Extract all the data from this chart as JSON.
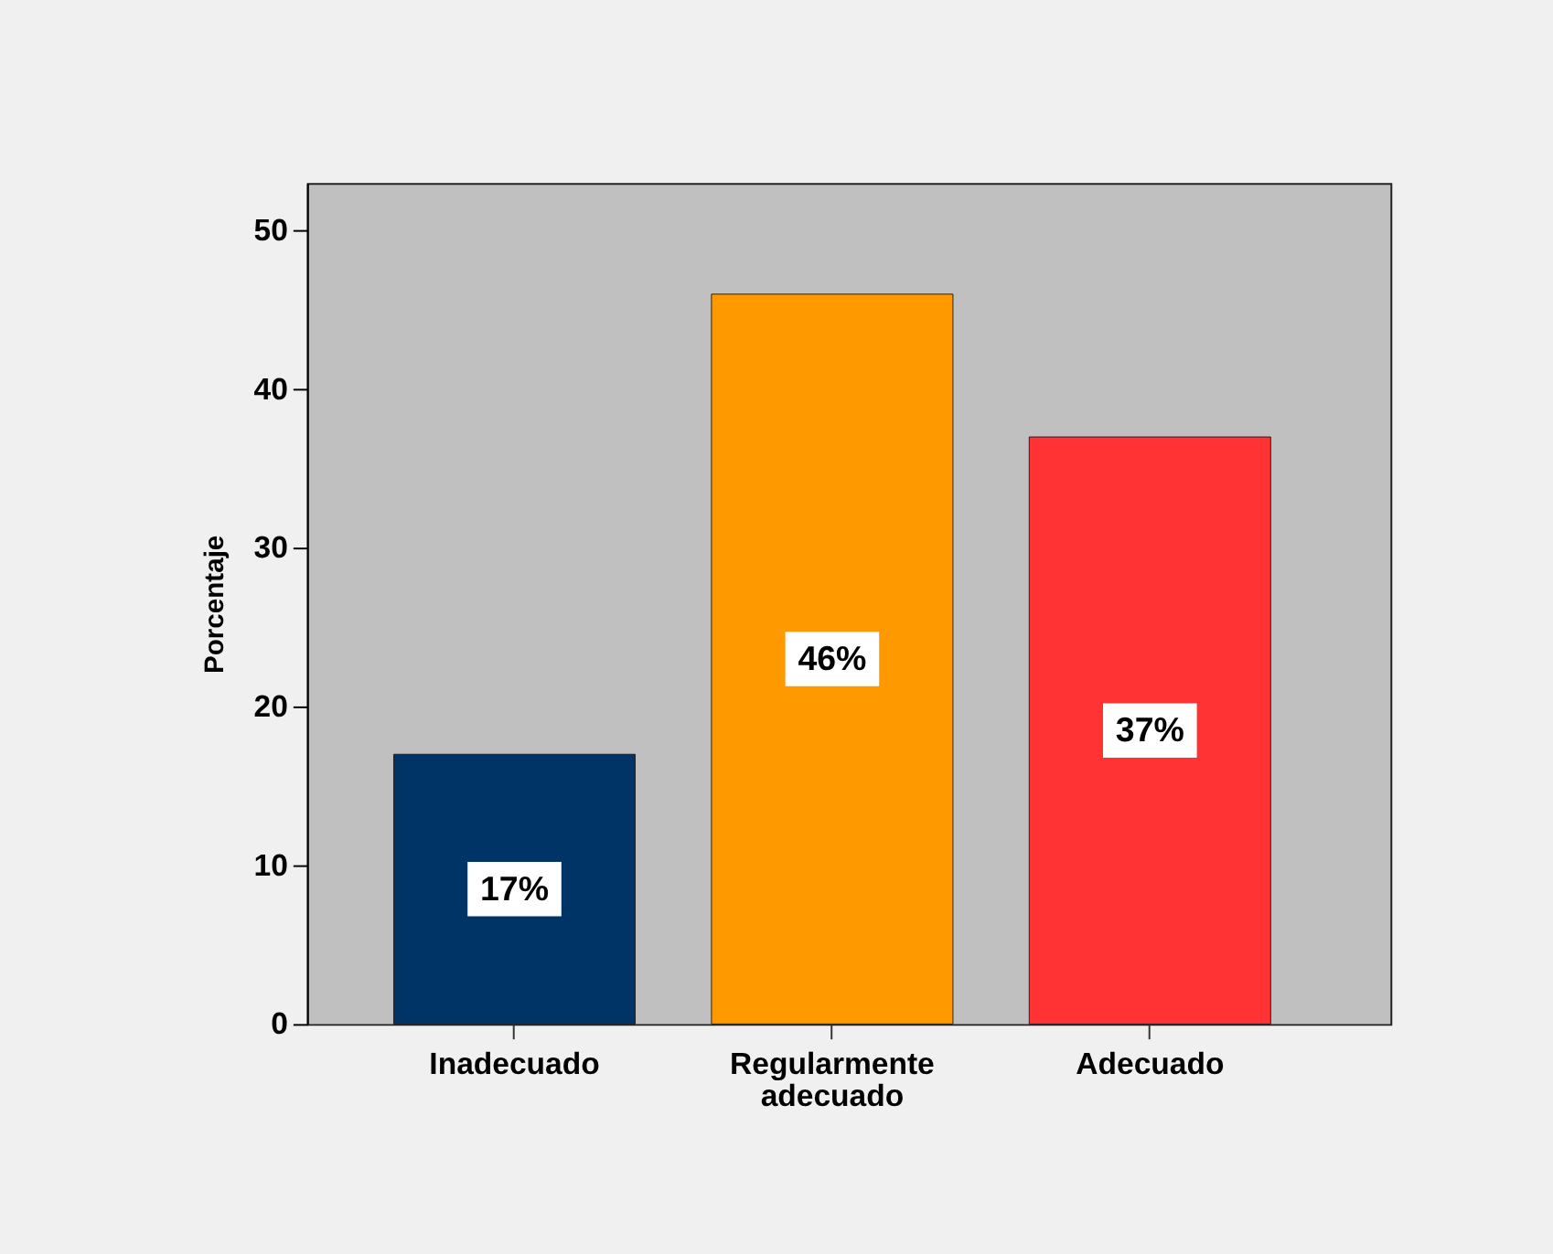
{
  "chart_data": {
    "type": "bar",
    "ylabel": "Porcentaje",
    "categories": [
      "Inadecuado",
      "Regularmente adecuado",
      "Adecuado"
    ],
    "values": [
      17,
      46,
      37
    ],
    "colors": [
      "#003366",
      "#ff9900",
      "#ff3333"
    ],
    "value_labels": [
      "17%",
      "46%",
      "37%"
    ],
    "ylim": [
      0,
      53
    ],
    "yticks": [
      0,
      10,
      20,
      30,
      40,
      50
    ]
  }
}
